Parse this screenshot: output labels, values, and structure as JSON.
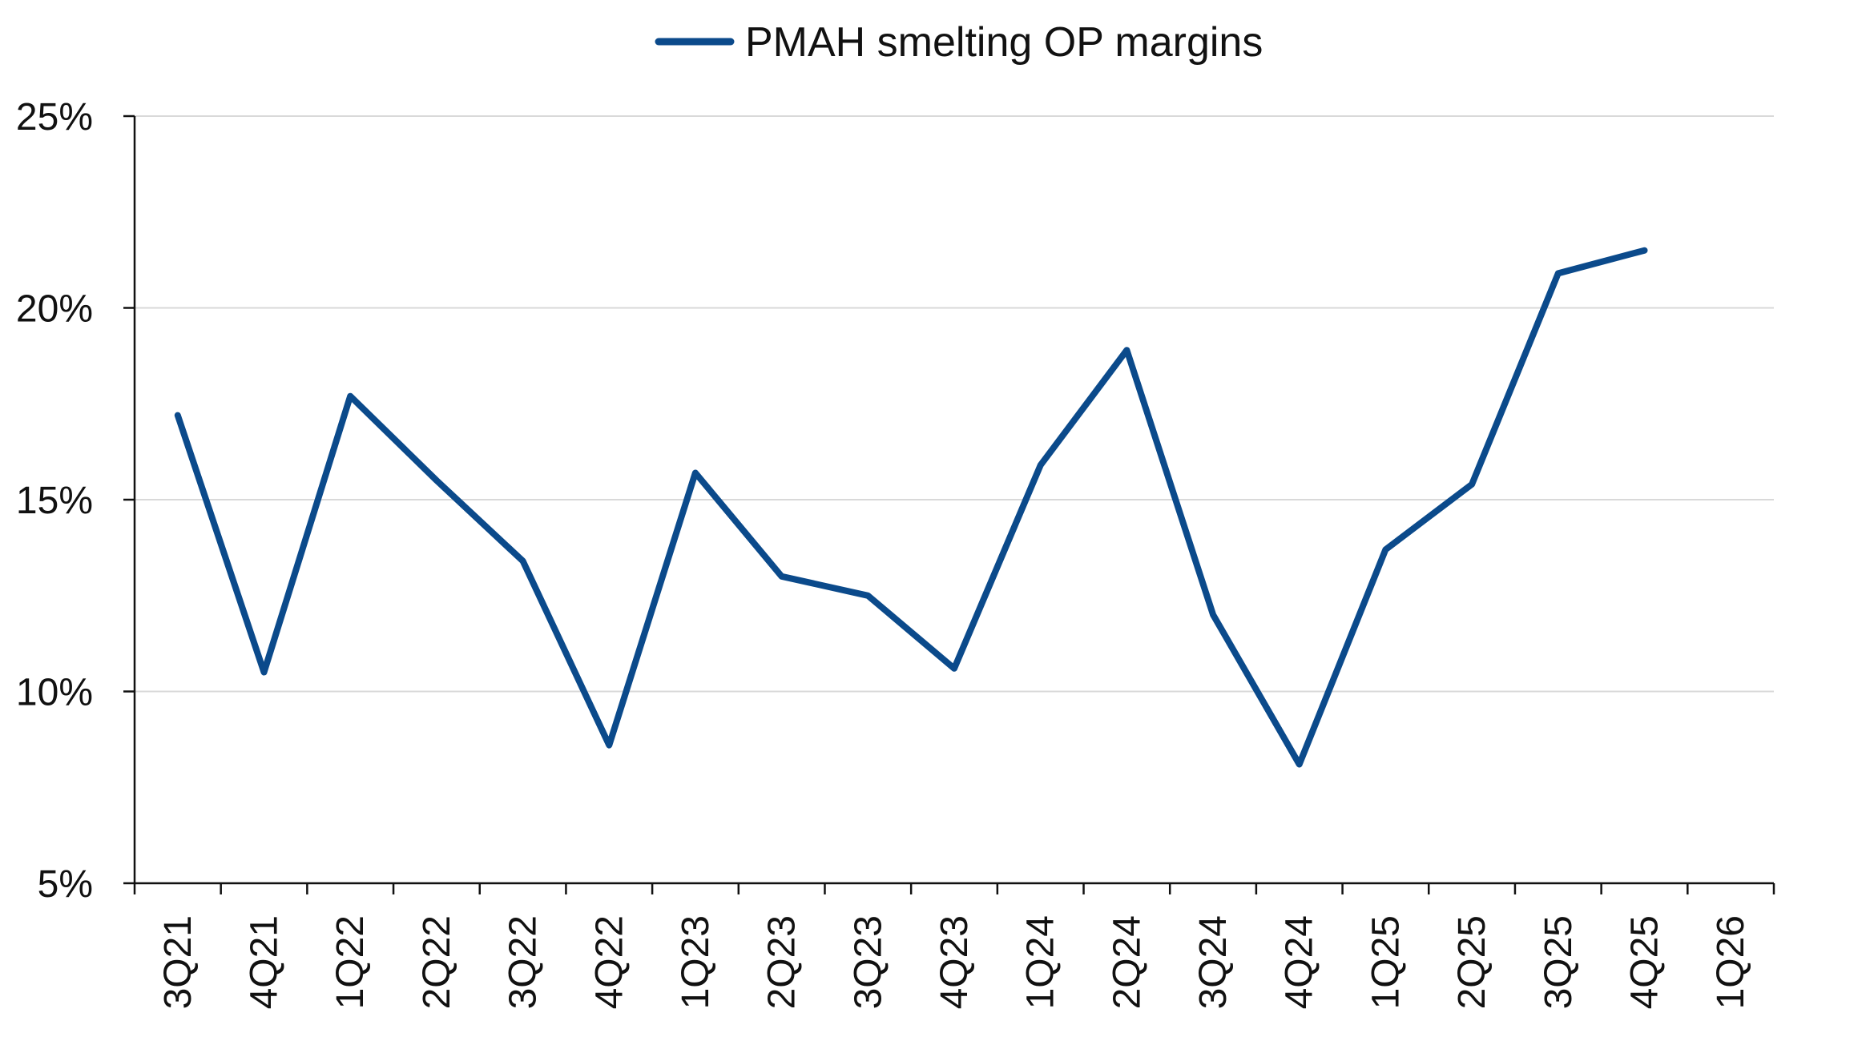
{
  "chart_data": {
    "type": "line",
    "categories": [
      "3Q21",
      "4Q21",
      "1Q22",
      "2Q22",
      "3Q22",
      "4Q22",
      "1Q23",
      "2Q23",
      "3Q23",
      "4Q23",
      "1Q24",
      "2Q24",
      "3Q24",
      "4Q24",
      "1Q25",
      "2Q25",
      "3Q25",
      "4Q25",
      "1Q26"
    ],
    "series": [
      {
        "name": "PMAH smelting OP margins",
        "color": "#0b4a8b",
        "values": [
          17.2,
          10.5,
          17.7,
          15.5,
          13.4,
          8.6,
          15.7,
          13.0,
          12.5,
          10.6,
          15.9,
          18.9,
          12.0,
          8.1,
          13.7,
          15.4,
          20.9,
          21.5,
          null
        ]
      }
    ],
    "y_ticks": [
      5,
      10,
      15,
      20,
      25
    ],
    "y_tick_labels": [
      "5%",
      "10%",
      "15%",
      "20%",
      "25%"
    ],
    "ylim": [
      5,
      25
    ],
    "grid": true,
    "legend_position": "top-center",
    "title": "",
    "xlabel": "",
    "ylabel": ""
  }
}
